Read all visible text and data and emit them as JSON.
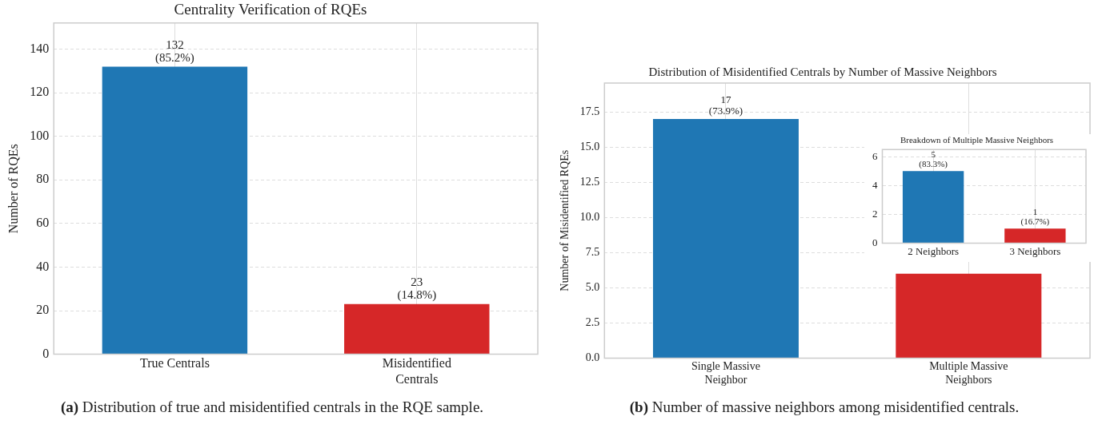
{
  "chart_data": [
    {
      "type": "bar",
      "title": "Centrality Verification of RQEs",
      "ylabel": "Number of RQEs",
      "categories": [
        "True Centrals",
        "Misidentified Centrals"
      ],
      "values": [
        132,
        23
      ],
      "colors": [
        "#1f77b4",
        "#d62728"
      ],
      "value_labels": [
        "132 (85.2%)",
        "23 (14.8%)"
      ],
      "ylim": [
        0,
        152
      ],
      "yticks": [
        0,
        20,
        40,
        60,
        80,
        100,
        120,
        140
      ],
      "grid": true,
      "legend": false,
      "annotations": [
        "(a) Distribution of true and misidentified centrals in the RQE sample."
      ]
    },
    {
      "type": "bar",
      "title": "Distribution of Misidentified Centrals by Number of Massive Neighbors",
      "ylabel": "Number of Misidentified RQEs",
      "categories": [
        "Single Massive Neighbor",
        "Multiple Massive Neighbors"
      ],
      "values": [
        17,
        6
      ],
      "colors": [
        "#1f77b4",
        "#d62728"
      ],
      "value_labels": [
        "17 (73.9%)",
        null
      ],
      "ylim": [
        0,
        19.55
      ],
      "yticks": [
        {
          "value": 0,
          "label": "0.0"
        },
        {
          "value": 2.5,
          "label": "2.5"
        },
        {
          "value": 5,
          "label": "5.0"
        },
        {
          "value": 7.5,
          "label": "7.5"
        },
        {
          "value": 10,
          "label": "10.0"
        },
        {
          "value": 12.5,
          "label": "12.5"
        },
        {
          "value": 15,
          "label": "15.0"
        },
        {
          "value": 17.5,
          "label": "17.5"
        }
      ],
      "grid": true,
      "legend": false,
      "annotations": [
        "(b) Number of massive neighbors among misidentified centrals."
      ]
    },
    {
      "type": "bar",
      "title": "Breakdown of Multiple Massive Neighbors",
      "categories": [
        "2 Neighbors",
        "3 Neighbors"
      ],
      "values": [
        5,
        1
      ],
      "colors": [
        "#1f77b4",
        "#d62728"
      ],
      "value_labels": [
        "5 (83.3%)",
        "1 (16.7%)"
      ],
      "ylim": [
        0,
        6.5
      ],
      "yticks": [
        0,
        2,
        4,
        6
      ],
      "grid": true,
      "legend": false
    }
  ]
}
